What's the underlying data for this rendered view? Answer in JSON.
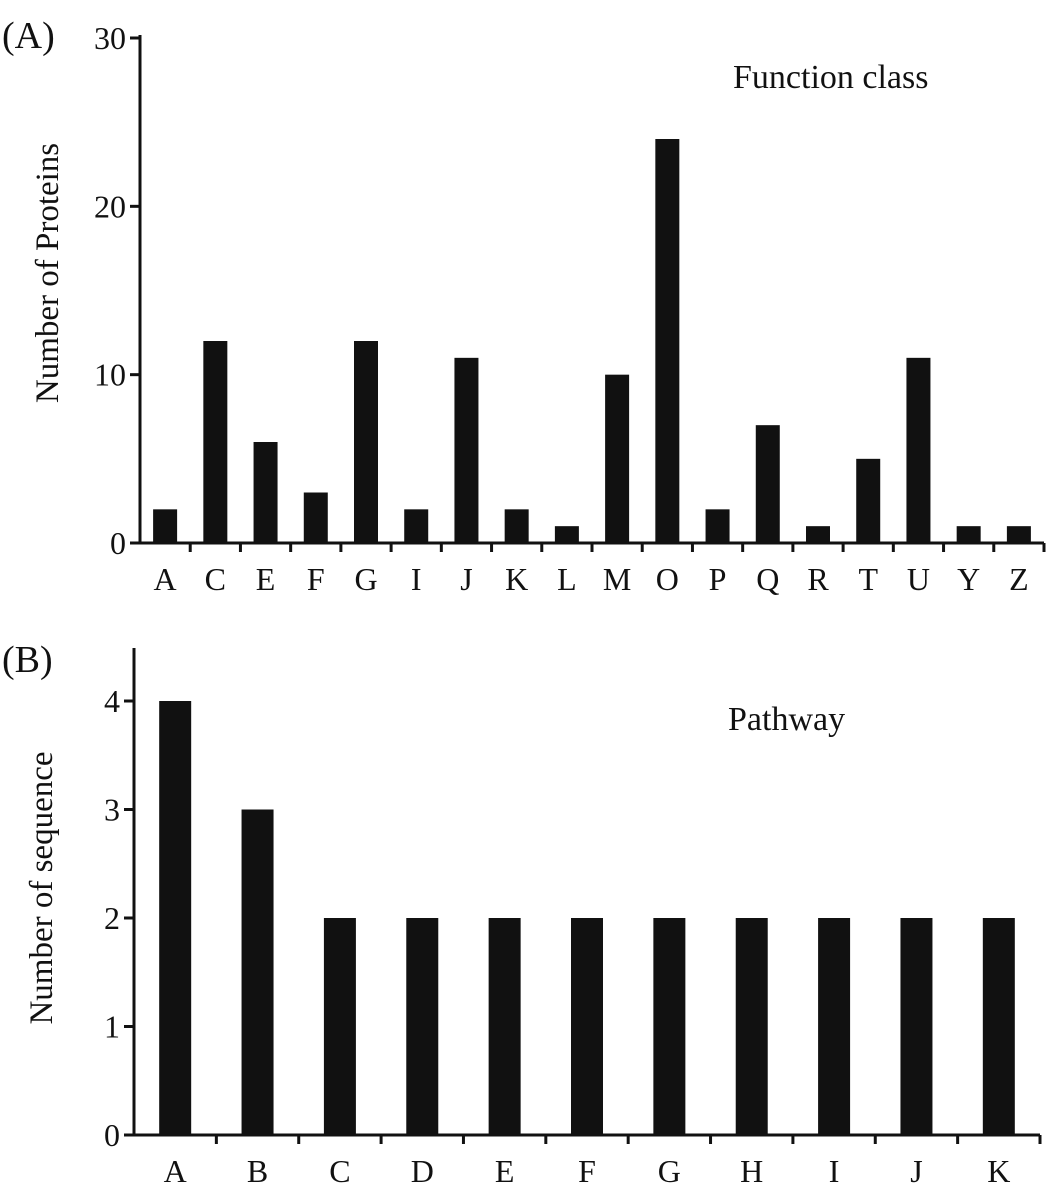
{
  "chart_data": [
    {
      "type": "bar",
      "panel_label": "(A)",
      "annotation": "Function class",
      "title": "",
      "xlabel": "",
      "ylabel": "Number of Proteins",
      "ylim": [
        0,
        30
      ],
      "yticks": [
        "0",
        "10",
        "20",
        "30"
      ],
      "categories": [
        "A",
        "C",
        "E",
        "F",
        "G",
        "I",
        "J",
        "K",
        "L",
        "M",
        "O",
        "P",
        "Q",
        "R",
        "T",
        "U",
        "Y",
        "Z"
      ],
      "values": [
        2,
        12,
        6,
        3,
        12,
        2,
        11,
        2,
        1,
        10,
        24,
        2,
        7,
        1,
        5,
        11,
        1,
        1
      ],
      "grid": false,
      "color": "#111111"
    },
    {
      "type": "bar",
      "panel_label": "(B)",
      "annotation": "Pathway",
      "title": "",
      "xlabel": "",
      "ylabel": "Number of sequence",
      "ylim": [
        0,
        4.5
      ],
      "yticks": [
        "0",
        "1",
        "2",
        "3",
        "4"
      ],
      "categories": [
        "A",
        "B",
        "C",
        "D",
        "E",
        "F",
        "G",
        "H",
        "I",
        "J",
        "K"
      ],
      "values": [
        4,
        3,
        2,
        2,
        2,
        2,
        2,
        2,
        2,
        2,
        2
      ],
      "grid": false,
      "color": "#111111"
    }
  ]
}
